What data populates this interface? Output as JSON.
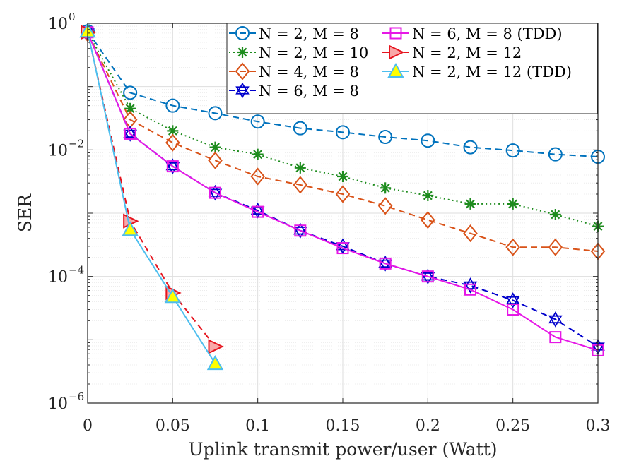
{
  "chart_data": {
    "type": "line",
    "y_scale": "log",
    "xlabel": "Uplink transmit power/user (Watt)",
    "ylabel": "SER",
    "xlim": [
      0,
      0.3
    ],
    "ylim": [
      1e-06,
      1
    ],
    "xticks": [
      0,
      0.05,
      0.1,
      0.15,
      0.2,
      0.25,
      0.3
    ],
    "xtick_labels": [
      "0",
      "0.05",
      "0.1",
      "0.15",
      "0.2",
      "0.25",
      "0.3"
    ],
    "yticks": [
      {
        "value": 1,
        "base": "10",
        "exp": "0"
      },
      {
        "value": 0.01,
        "base": "10",
        "exp": "−2"
      },
      {
        "value": 0.0001,
        "base": "10",
        "exp": "−4"
      },
      {
        "value": 1e-06,
        "base": "10",
        "exp": "−6"
      }
    ],
    "grid": true,
    "legend_position": "top-right",
    "series": [
      {
        "name": "N = 2, M = 8",
        "color": "#0072BD",
        "marker": "circle",
        "line": "dashed",
        "x": [
          0,
          0.025,
          0.05,
          0.075,
          0.1,
          0.125,
          0.15,
          0.175,
          0.2,
          0.225,
          0.25,
          0.275,
          0.3
        ],
        "y": [
          0.75,
          0.08,
          0.05,
          0.038,
          0.028,
          0.022,
          0.019,
          0.016,
          0.014,
          0.011,
          0.0098,
          0.0085,
          0.0078
        ]
      },
      {
        "name": "N = 2, M = 10",
        "color": "#1E8C1E",
        "marker": "asterisk",
        "line": "dotted",
        "x": [
          0,
          0.025,
          0.05,
          0.075,
          0.1,
          0.125,
          0.15,
          0.175,
          0.2,
          0.225,
          0.25,
          0.275,
          0.3
        ],
        "y": [
          0.72,
          0.045,
          0.02,
          0.011,
          0.0085,
          0.0052,
          0.0038,
          0.0025,
          0.0019,
          0.0014,
          0.0014,
          0.00095,
          0.00062
        ]
      },
      {
        "name": "N = 4, M = 8",
        "color": "#D95319",
        "marker": "diamond",
        "line": "dashed",
        "x": [
          0,
          0.025,
          0.05,
          0.075,
          0.1,
          0.125,
          0.15,
          0.175,
          0.2,
          0.225,
          0.25,
          0.275,
          0.3
        ],
        "y": [
          0.7,
          0.03,
          0.013,
          0.0068,
          0.0038,
          0.0028,
          0.002,
          0.0013,
          0.00078,
          0.00048,
          0.00029,
          0.00029,
          0.00025
        ]
      },
      {
        "name": "N = 6, M = 8",
        "color": "#0000CC",
        "marker": "hexagram",
        "line": "dashed",
        "x": [
          0,
          0.025,
          0.05,
          0.075,
          0.1,
          0.125,
          0.15,
          0.175,
          0.2,
          0.225,
          0.25,
          0.275,
          0.3
        ],
        "y": [
          0.72,
          0.018,
          0.0055,
          0.0021,
          0.0011,
          0.00053,
          0.0003,
          0.00016,
          0.0001,
          7.2e-05,
          4.2e-05,
          2.1e-05,
          7.8e-06
        ]
      },
      {
        "name": "N = 6, M = 8 (TDD)",
        "color": "#E617E6",
        "marker": "square",
        "line": "solid",
        "x": [
          0,
          0.025,
          0.05,
          0.075,
          0.1,
          0.125,
          0.15,
          0.175,
          0.2,
          0.225,
          0.25,
          0.275,
          0.3
        ],
        "y": [
          0.72,
          0.018,
          0.0055,
          0.0021,
          0.00105,
          0.00053,
          0.00028,
          0.00016,
          0.0001,
          6.2e-05,
          3e-05,
          1.1e-05,
          6.8e-06
        ]
      },
      {
        "name": "N = 2, M = 12",
        "color": "#E6141E",
        "marker": "triangle-right",
        "line": "dashed",
        "fill": "#F8A8A8",
        "x": [
          0,
          0.025,
          0.05,
          0.075
        ],
        "y": [
          0.72,
          0.00075,
          5.5e-05,
          7.8e-06
        ]
      },
      {
        "name": "N = 2, M = 12 (TDD)",
        "color": "#4DBEEE",
        "marker": "triangle-up",
        "line": "solid",
        "fill": "#FFFF00",
        "x": [
          0,
          0.025,
          0.05,
          0.075
        ],
        "y": [
          0.75,
          0.00055,
          4.8e-05,
          4.2e-06
        ]
      }
    ]
  }
}
